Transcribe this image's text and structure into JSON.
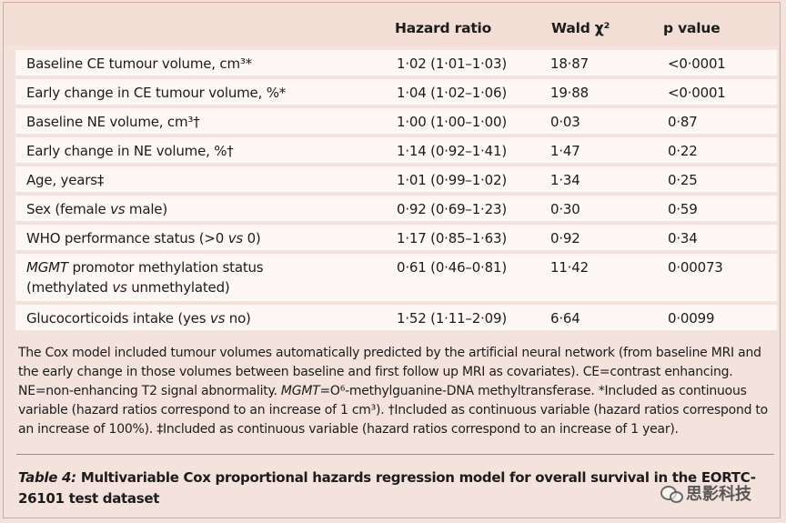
{
  "table": {
    "headers": [
      "Hazard ratio",
      "Wald χ²",
      "p value"
    ],
    "rows": [
      {
        "variable": "Baseline CE tumour volume, cm³*",
        "hr": "1·02 (1·01–1·03)",
        "wald": "18·87",
        "p": "<0·0001"
      },
      {
        "variable": "Early change in CE tumour volume, %*",
        "hr": "1·04 (1·02–1·06)",
        "wald": "19·88",
        "p": "<0·0001"
      },
      {
        "variable": "Baseline NE volume, cm³†",
        "hr": "1·00 (1·00–1·00)",
        "wald": "0·03",
        "p": "0·87"
      },
      {
        "variable": "Early change in NE volume, %†",
        "hr": "1·14 (0·92–1·41)",
        "wald": "1·47",
        "p": "0·22"
      },
      {
        "variable": "Age, years‡",
        "hr": "1·01 (0·99–1·02)",
        "wald": "1·34",
        "p": "0·25"
      },
      {
        "variable_pre": "Sex (female ",
        "variable_em": "vs",
        "variable_post": " male)",
        "hr": "0·92 (0·69–1·23)",
        "wald": "0·30",
        "p": "0·59"
      },
      {
        "variable_pre": "WHO performance status (>0 ",
        "variable_em": "vs",
        "variable_post": " 0)",
        "hr": "1·17 (0·85–1·63)",
        "wald": "0·92",
        "p": "0·34"
      },
      {
        "variable_em1": "MGMT",
        "variable_line1": " promotor methylation status",
        "variable_line2_pre": "(methylated ",
        "variable_line2_em": "vs",
        "variable_line2_post": " unmethylated)",
        "hr": "0·61 (0·46–0·81)",
        "wald": "11·42",
        "p": "0·00073"
      },
      {
        "variable_pre": "Glucocorticoids intake (yes ",
        "variable_em": "vs",
        "variable_post": " no)",
        "hr": "1·52 (1·11–2·09)",
        "wald": "6·64",
        "p": "0·0099"
      }
    ]
  },
  "footnote": {
    "part1": "The Cox model included tumour volumes automatically predicted by the artificial neural network (from baseline MRI and the early change in those volumes between baseline and first follow up MRI as covariates). CE=contrast enhancing. NE=non-enhancing T2 signal abnormality. ",
    "mgmt": "MGMT",
    "part2": "=O⁶-methylguanine-DNA methyltransferase. *Included as continuous variable (hazard ratios correspond to an increase of 1 cm³). †Included as continuous variable (hazard ratios correspond to an increase of 100%). ‡Included as continuous variable (hazard ratios correspond to an increase of 1 year)."
  },
  "caption": {
    "label": "Table 4:",
    "text": " Multivariable Cox proportional hazards regression model for overall survival in the EORTC-26101 test dataset"
  },
  "watermark": {
    "text": "思影科技",
    "icon": "wechat-icon"
  }
}
